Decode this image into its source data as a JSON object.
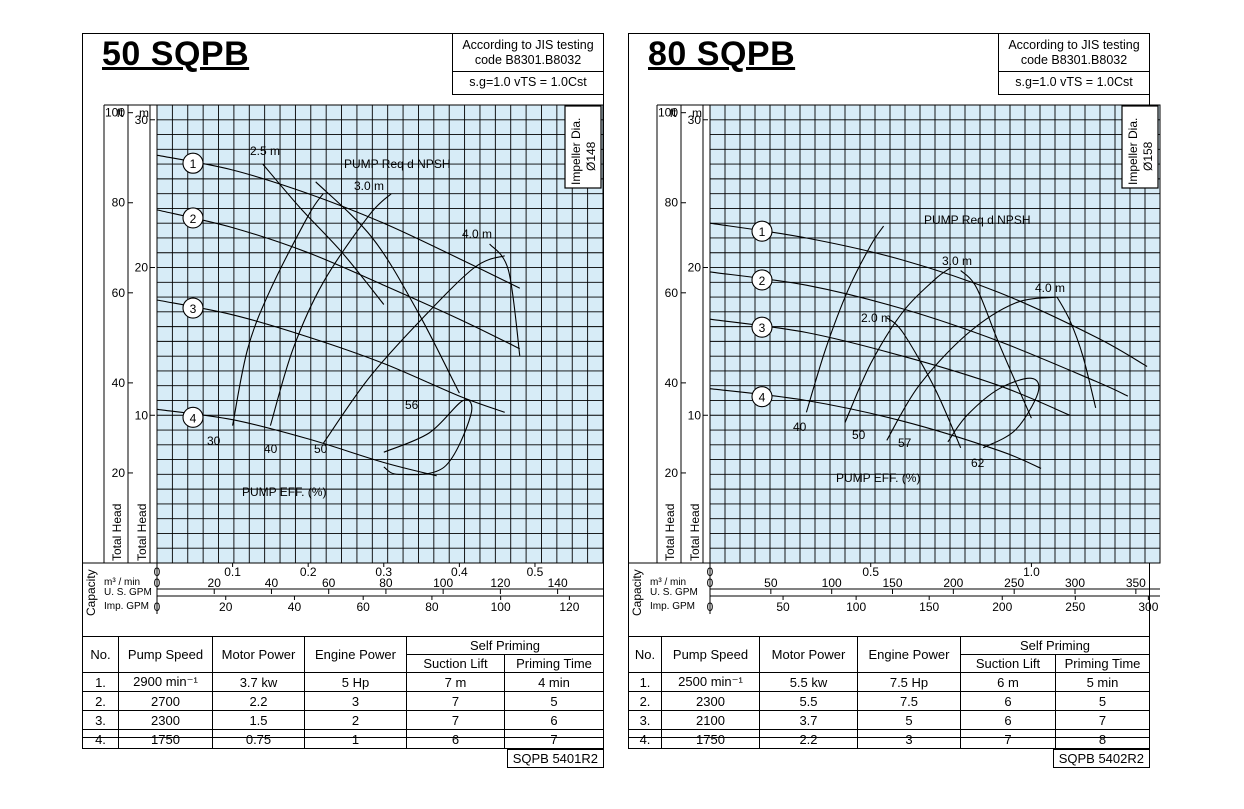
{
  "colors": {
    "grid_bg": "#d7ecf7",
    "grid_line": "#000000",
    "ink": "#000000"
  },
  "chart_data": [
    {
      "type": "line",
      "title": "50 SQPB",
      "standard_line1": "According to JIS testing code B8301.B8032",
      "standard_line2": "s.g=1.0 vTS = 1.0Cst",
      "impeller_label": "Impeller Dia.",
      "impeller_value": "Ø148",
      "head_units": {
        "ft": "ft",
        "m": "m"
      },
      "head_ft_ticks": [
        "100",
        "80",
        "60",
        "40",
        "20"
      ],
      "head_m_ticks": [
        "30",
        "20",
        "10"
      ],
      "ylabel": "Total Head",
      "capacity_label": "Capacity",
      "x_unit_labels": [
        "m³ / min",
        "U. S. GPM",
        "Imp. GPM"
      ],
      "x_ticks_m3": [
        "0",
        "0.1",
        "0.2",
        "0.3",
        "0.4",
        "0.5"
      ],
      "x_ticks_usgpm": [
        "0",
        "20",
        "40",
        "60",
        "80",
        "100",
        "120",
        "140"
      ],
      "x_ticks_impgpm": [
        "0",
        "20",
        "40",
        "60",
        "80",
        "100",
        "120"
      ],
      "xlim_m3min": [
        0,
        0.59
      ],
      "ylim_m": [
        0,
        31
      ],
      "series": [
        {
          "name": "1",
          "x": [
            0,
            0.1,
            0.2,
            0.3,
            0.4,
            0.48
          ],
          "y": [
            27.6,
            26.6,
            25.0,
            23.0,
            20.6,
            18.6
          ]
        },
        {
          "name": "2",
          "x": [
            0,
            0.1,
            0.2,
            0.3,
            0.4,
            0.48
          ],
          "y": [
            23.9,
            22.7,
            21.0,
            18.8,
            16.5,
            14.5
          ]
        },
        {
          "name": "3",
          "x": [
            0,
            0.1,
            0.2,
            0.3,
            0.4,
            0.46
          ],
          "y": [
            17.8,
            16.8,
            15.3,
            13.5,
            11.3,
            10.2
          ]
        },
        {
          "name": "4",
          "x": [
            0,
            0.1,
            0.2,
            0.3,
            0.37
          ],
          "y": [
            10.4,
            9.7,
            8.4,
            6.8,
            5.9
          ]
        }
      ],
      "npsh_title": "PUMP Req d NPSH",
      "npsh_curves": [
        {
          "label": "2.5 m",
          "x": [
            0.14,
            0.19,
            0.245,
            0.3
          ],
          "y": [
            27.0,
            24.0,
            21.0,
            17.5
          ]
        },
        {
          "label": "3.0 m",
          "x": [
            0.21,
            0.285,
            0.345,
            0.4
          ],
          "y": [
            25.8,
            22.0,
            17.0,
            11.5
          ]
        },
        {
          "label": "4.0 m",
          "x": [
            0.44,
            0.465,
            0.48
          ],
          "y": [
            21.6,
            19.8,
            14.0
          ]
        }
      ],
      "efficiency_title": "PUMP EFF. (%)",
      "efficiency_contours": [
        {
          "label": "30",
          "x": [
            0.1,
            0.12,
            0.15,
            0.2,
            0.22
          ],
          "y": [
            9.3,
            14.5,
            18.5,
            23.5,
            25.0
          ]
        },
        {
          "label": "40",
          "x": [
            0.15,
            0.18,
            0.22,
            0.28,
            0.31
          ],
          "y": [
            9.3,
            14.5,
            19.0,
            23.5,
            25.0
          ]
        },
        {
          "label": "50",
          "x": [
            0.22,
            0.28,
            0.35,
            0.42,
            0.46
          ],
          "y": [
            8.1,
            12.5,
            16.5,
            20.0,
            20.8
          ]
        },
        {
          "label": "56",
          "x": [
            0.3,
            0.36,
            0.405,
            0.415,
            0.38,
            0.32,
            0.3
          ],
          "y": [
            7.5,
            8.8,
            11.0,
            10.0,
            6.5,
            6.0,
            6.5
          ]
        }
      ],
      "table": {
        "headers": [
          "No.",
          "Pump Speed",
          "Motor Power",
          "Engine Power",
          "Self Priming",
          "Suction Lift",
          "Priming Time"
        ],
        "rows": [
          [
            "1.",
            "2900 min⁻¹",
            "3.7 kw",
            "5 Hp",
            "7 m",
            "4 min"
          ],
          [
            "2.",
            "2700",
            "2.2",
            "3",
            "7",
            "5"
          ],
          [
            "3.",
            "2300",
            "1.5",
            "2",
            "7",
            "6"
          ],
          [
            "4.",
            "1750",
            "0.75",
            "1",
            "6",
            "7"
          ]
        ]
      },
      "footer_code": "SQPB 5401R2"
    },
    {
      "type": "line",
      "title": "80 SQPB",
      "standard_line1": "According to JIS testing code B8301.B8032",
      "standard_line2": "s.g=1.0 vTS = 1.0Cst",
      "impeller_label": "Impeller Dia.",
      "impeller_value": "Ø158",
      "head_units": {
        "ft": "ft",
        "m": "m"
      },
      "head_ft_ticks": [
        "100",
        "80",
        "60",
        "40",
        "20"
      ],
      "head_m_ticks": [
        "30",
        "20",
        "10"
      ],
      "ylabel": "Total Head",
      "capacity_label": "Capacity",
      "x_unit_labels": [
        "m³ / min",
        "U. S. GPM",
        "Imp. GPM"
      ],
      "x_ticks_m3": [
        "0",
        "0.5",
        "1.0"
      ],
      "x_ticks_usgpm": [
        "0",
        "50",
        "100",
        "150",
        "200",
        "250",
        "300",
        "350"
      ],
      "x_ticks_impgpm": [
        "0",
        "50",
        "100",
        "150",
        "200",
        "250",
        "300"
      ],
      "xlim_m3min": [
        0,
        1.4
      ],
      "ylim_m": [
        0,
        31
      ],
      "series": [
        {
          "name": "1",
          "x": [
            0,
            0.3,
            0.6,
            0.9,
            1.2,
            1.36
          ],
          "y": [
            23.0,
            22.0,
            20.5,
            18.3,
            15.3,
            13.3
          ]
        },
        {
          "name": "2",
          "x": [
            0,
            0.3,
            0.6,
            0.9,
            1.2,
            1.3
          ],
          "y": [
            19.7,
            18.8,
            17.2,
            15.0,
            12.3,
            11.3
          ]
        },
        {
          "name": "3",
          "x": [
            0,
            0.3,
            0.6,
            0.9,
            1.12
          ],
          "y": [
            16.5,
            15.6,
            14.0,
            12.0,
            10.0
          ]
        },
        {
          "name": "4",
          "x": [
            0,
            0.3,
            0.6,
            0.9,
            1.03
          ],
          "y": [
            11.8,
            11.0,
            9.6,
            7.6,
            6.4
          ]
        }
      ],
      "npsh_title": "PUMP Req d NPSH",
      "npsh_curves": [
        {
          "label": "2.0 m",
          "x": [
            0.55,
            0.6,
            0.7,
            0.78
          ],
          "y": [
            16.6,
            15.6,
            11.8,
            7.8
          ]
        },
        {
          "label": "3.0 m",
          "x": [
            0.78,
            0.83,
            0.9,
            1.0
          ],
          "y": [
            19.8,
            18.6,
            14.8,
            9.8
          ]
        },
        {
          "label": "4.0 m",
          "x": [
            1.08,
            1.12,
            1.16,
            1.2
          ],
          "y": [
            18.0,
            16.4,
            14.0,
            10.5
          ]
        }
      ],
      "efficiency_title": "PUMP EFF. (%)",
      "efficiency_contours": [
        {
          "label": "40",
          "x": [
            0.3,
            0.36,
            0.43,
            0.5,
            0.54
          ],
          "y": [
            10.2,
            14.5,
            18.5,
            21.5,
            22.8
          ]
        },
        {
          "label": "50",
          "x": [
            0.42,
            0.5,
            0.6,
            0.7,
            0.75
          ],
          "y": [
            9.5,
            13.5,
            17.0,
            19.2,
            20.0
          ]
        },
        {
          "label": "57",
          "x": [
            0.55,
            0.65,
            0.8,
            0.95,
            1.08
          ],
          "y": [
            8.3,
            12.0,
            15.5,
            17.6,
            18.0
          ]
        },
        {
          "label": "62",
          "x": [
            0.74,
            0.8,
            0.9,
            1.0,
            1.02,
            0.95,
            0.85
          ],
          "y": [
            8.2,
            10.0,
            11.8,
            12.5,
            11.5,
            9.0,
            7.8
          ]
        }
      ],
      "table": {
        "headers": [
          "No.",
          "Pump Speed",
          "Motor Power",
          "Engine Power",
          "Self Priming",
          "Suction Lift",
          "Priming Time"
        ],
        "rows": [
          [
            "1.",
            "2500 min⁻¹",
            "5.5 kw",
            "7.5 Hp",
            "6 m",
            "5 min"
          ],
          [
            "2.",
            "2300",
            "5.5",
            "7.5",
            "6",
            "5"
          ],
          [
            "3.",
            "2100",
            "3.7",
            "5",
            "6",
            "7"
          ],
          [
            "4.",
            "1750",
            "2.2",
            "3",
            "7",
            "8"
          ]
        ]
      },
      "footer_code": "SQPB 5402R2"
    }
  ]
}
